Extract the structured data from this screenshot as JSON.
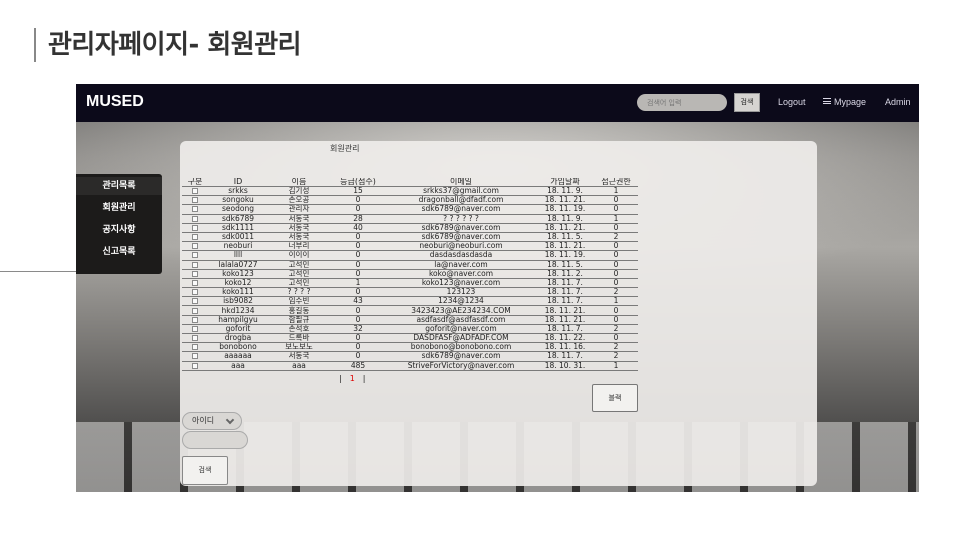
{
  "slide_title": "관리자페이지- 회원관리",
  "navbar": {
    "logo": "MUSED",
    "search_placeholder": "검색어 입력",
    "search_button": "검색",
    "logout": "Logout",
    "mypage": "Mypage",
    "admin": "Admin"
  },
  "sidebar": {
    "items": [
      {
        "label": "관리목록"
      },
      {
        "label": "회원관리"
      },
      {
        "label": "공지사항"
      },
      {
        "label": "신고목록"
      }
    ]
  },
  "panel": {
    "title": "회원관리",
    "columns": [
      "구분",
      "ID",
      "이름",
      "등급(점수)",
      "이메일",
      "가입날짜",
      "접근권한"
    ],
    "rows": [
      {
        "id": "srkks",
        "name": "김기성",
        "grade": "15",
        "email": "srkks37@gmail.com",
        "date": "18. 11. 9.",
        "access": "1"
      },
      {
        "id": "songoku",
        "name": "손오공",
        "grade": "0",
        "email": "dragonball@dfadf.com",
        "date": "18. 11. 21.",
        "access": "0"
      },
      {
        "id": "seodong",
        "name": "관리자",
        "grade": "0",
        "email": "sdk6789@naver.com",
        "date": "18. 11. 19.",
        "access": "0"
      },
      {
        "id": "sdk6789",
        "name": "서동국",
        "grade": "28",
        "email": "? ? ? ? ? ?",
        "date": "18. 11. 9.",
        "access": "1"
      },
      {
        "id": "sdk1111",
        "name": "서동국",
        "grade": "40",
        "email": "sdk6789@naver.com",
        "date": "18. 11. 21.",
        "access": "0"
      },
      {
        "id": "sdk0011",
        "name": "서동국",
        "grade": "0",
        "email": "sdk6789@naver.com",
        "date": "18. 11. 5.",
        "access": "2"
      },
      {
        "id": "neoburi",
        "name": "너부리",
        "grade": "0",
        "email": "neoburi@neoburi.com",
        "date": "18. 11. 21.",
        "access": "0"
      },
      {
        "id": "llll",
        "name": "이이이",
        "grade": "0",
        "email": "dasdasdasdasda",
        "date": "18. 11. 19.",
        "access": "0"
      },
      {
        "id": "lalala0727",
        "name": "고석민",
        "grade": "0",
        "email": "la@naver.com",
        "date": "18. 11. 5.",
        "access": "0"
      },
      {
        "id": "koko123",
        "name": "고석민",
        "grade": "0",
        "email": "koko@naver.com",
        "date": "18. 11. 2.",
        "access": "0"
      },
      {
        "id": "koko12",
        "name": "고석민",
        "grade": "1",
        "email": "koko123@naver.com",
        "date": "18. 11. 7.",
        "access": "0"
      },
      {
        "id": "koko111",
        "name": "? ? ? ?",
        "grade": "0",
        "email": "123123",
        "date": "18. 11. 7.",
        "access": "2"
      },
      {
        "id": "isb9082",
        "name": "임수빈",
        "grade": "43",
        "email": "1234@1234",
        "date": "18. 11. 7.",
        "access": "1"
      },
      {
        "id": "hkd1234",
        "name": "홍길동",
        "grade": "0",
        "email": "3423423@AE234234.COM",
        "date": "18. 11. 21.",
        "access": "0"
      },
      {
        "id": "hampilgyu",
        "name": "함필규",
        "grade": "0",
        "email": "asdfasdf@asdfasdf.com",
        "date": "18. 11. 21.",
        "access": "0"
      },
      {
        "id": "goforit",
        "name": "손석호",
        "grade": "32",
        "email": "goforit@naver.com",
        "date": "18. 11. 7.",
        "access": "2"
      },
      {
        "id": "drogba",
        "name": "드록바",
        "grade": "0",
        "email": "DASDFASF@ADFADF.COM",
        "date": "18. 11. 22.",
        "access": "0"
      },
      {
        "id": "bonobono",
        "name": "보노보노",
        "grade": "0",
        "email": "bonobono@bonobono.com",
        "date": "18. 11. 16.",
        "access": "2"
      },
      {
        "id": "aaaaaa",
        "name": "서동국",
        "grade": "0",
        "email": "sdk6789@naver.com",
        "date": "18. 11. 7.",
        "access": "2"
      },
      {
        "id": "aaa",
        "name": "aaa",
        "grade": "485",
        "email": "StriveForVictory@naver.com",
        "date": "18. 10. 31.",
        "access": "1"
      }
    ],
    "pagination": {
      "prev": "|",
      "current": "1",
      "next": "|"
    },
    "block_button": "블랙",
    "search_select": "아이디",
    "search_submit": "검색"
  }
}
